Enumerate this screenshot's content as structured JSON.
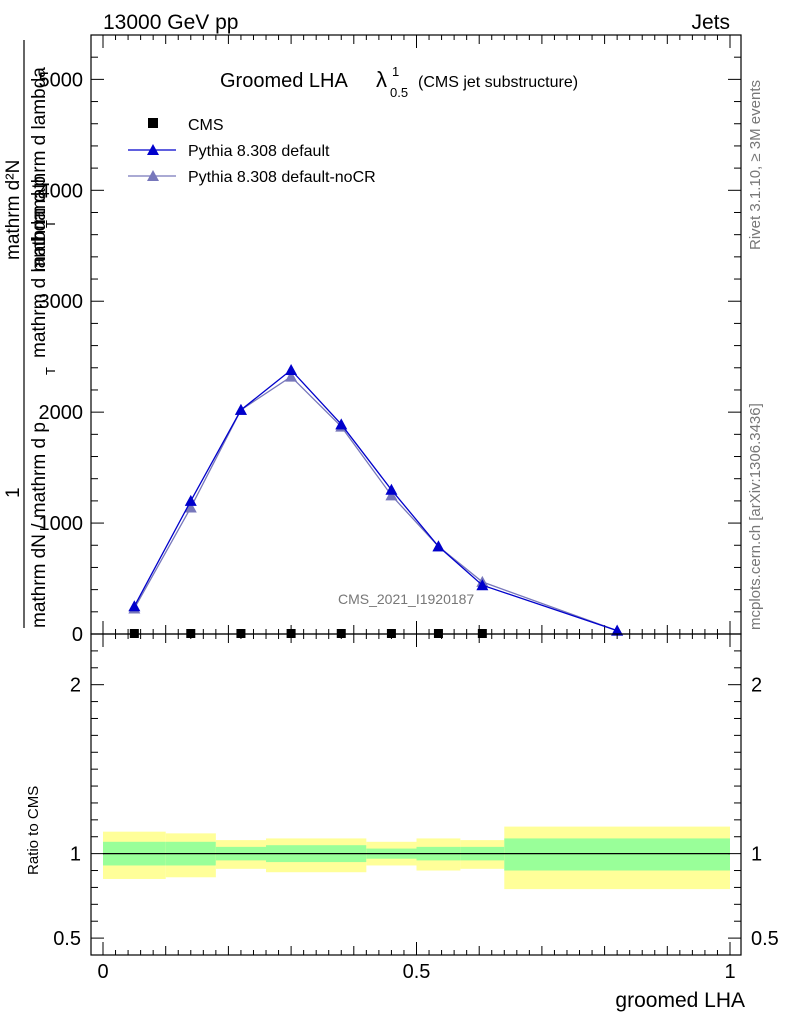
{
  "header": {
    "left": "13000 GeV pp",
    "right": "Jets"
  },
  "side": {
    "rivet": "Rivet 3.1.10, ≥ 3M events",
    "mcplots": "mcplots.cern.ch [arXiv:1306.3436]"
  },
  "watermark": "CMS_2021_I1920187",
  "colors": {
    "cms": "#000000",
    "default": "#0000cc",
    "nocr": "#7777bb",
    "band_yellow": "#ffff99",
    "band_green": "#99ff99"
  },
  "chart_data": [
    {
      "type": "line",
      "title": {
        "main": "Groomed LHA",
        "lambda": "λ",
        "sup": "1",
        "sub": "0.5",
        "suffix": "(CMS jet substructure)"
      },
      "ylabel": {
        "top_numerator": "1",
        "top_denominator": "mathrm d²N / mathrm d p_T mathrm d lambda",
        "middle": "mathrm d p_T mathrm d lambda",
        "bottom": "mathrm dN / mathrm d p_T",
        "fragments": [
          "mathrm d²N",
          "mathrm d p",
          "T",
          "mathrm d lambda",
          "mathrm dN / mathrm d p",
          "T",
          "mathrm d lambda",
          "1"
        ]
      },
      "xlim": [
        0,
        1
      ],
      "ylim": [
        0,
        5400
      ],
      "yticks": [
        {
          "v": 0,
          "label": "0"
        },
        {
          "v": 1000,
          "label": "1000"
        },
        {
          "v": 2000,
          "label": "2000"
        },
        {
          "v": 3000,
          "label": "3000"
        },
        {
          "v": 4000,
          "label": "4000"
        },
        {
          "v": 5000,
          "label": "5000"
        }
      ],
      "legend_position": "top-left",
      "series": [
        {
          "name": "CMS",
          "x": [
            0.05,
            0.14,
            0.22,
            0.3,
            0.38,
            0.46,
            0.535,
            0.605
          ],
          "y": [
            0,
            0,
            0,
            0,
            0,
            0,
            0,
            0
          ],
          "marker": "square"
        },
        {
          "name": "Pythia 8.308 default",
          "x": [
            0.05,
            0.14,
            0.22,
            0.3,
            0.38,
            0.46,
            0.535,
            0.605,
            0.82
          ],
          "y": [
            250,
            1200,
            2020,
            2380,
            1890,
            1300,
            790,
            440,
            30
          ],
          "marker": "triangle"
        },
        {
          "name": "Pythia 8.308 default-noCR",
          "x": [
            0.05,
            0.14,
            0.22,
            0.3,
            0.38,
            0.46,
            0.535,
            0.605,
            0.82
          ],
          "y": [
            230,
            1140,
            2020,
            2320,
            1870,
            1250,
            790,
            470,
            30
          ],
          "marker": "triangle"
        }
      ]
    },
    {
      "type": "area",
      "ylabel": "Ratio to CMS",
      "xlabel": "groomed LHA",
      "xlim": [
        0,
        1
      ],
      "ylim": [
        0.4,
        2.3
      ],
      "xticks": [
        {
          "v": 0,
          "label": "0"
        },
        {
          "v": 0.5,
          "label": "0.5"
        },
        {
          "v": 1,
          "label": "1"
        }
      ],
      "yticks": [
        {
          "v": 0.5,
          "label": "0.5"
        },
        {
          "v": 1,
          "label": "1"
        },
        {
          "v": 2,
          "label": "2"
        }
      ],
      "bins": [
        {
          "lo": 0.0,
          "hi": 0.1,
          "g_lo": 0.93,
          "g_hi": 1.07,
          "y_lo": 0.85,
          "y_hi": 1.13
        },
        {
          "lo": 0.1,
          "hi": 0.18,
          "g_lo": 0.93,
          "g_hi": 1.07,
          "y_lo": 0.86,
          "y_hi": 1.12
        },
        {
          "lo": 0.18,
          "hi": 0.26,
          "g_lo": 0.96,
          "g_hi": 1.04,
          "y_lo": 0.91,
          "y_hi": 1.08
        },
        {
          "lo": 0.26,
          "hi": 0.42,
          "g_lo": 0.95,
          "g_hi": 1.05,
          "y_lo": 0.89,
          "y_hi": 1.09
        },
        {
          "lo": 0.42,
          "hi": 0.5,
          "g_lo": 0.97,
          "g_hi": 1.03,
          "y_lo": 0.93,
          "y_hi": 1.07
        },
        {
          "lo": 0.5,
          "hi": 0.57,
          "g_lo": 0.96,
          "g_hi": 1.04,
          "y_lo": 0.9,
          "y_hi": 1.09
        },
        {
          "lo": 0.57,
          "hi": 0.64,
          "g_lo": 0.96,
          "g_hi": 1.04,
          "y_lo": 0.91,
          "y_hi": 1.08
        },
        {
          "lo": 0.64,
          "hi": 1.0,
          "g_lo": 0.9,
          "g_hi": 1.09,
          "y_lo": 0.79,
          "y_hi": 1.16
        }
      ],
      "reference_line": 1.0
    }
  ]
}
